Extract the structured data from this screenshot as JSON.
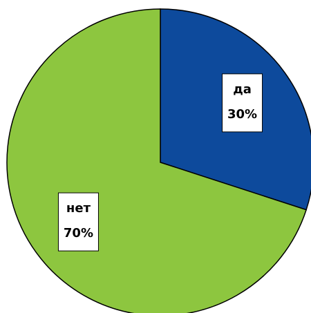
{
  "chart_data": {
    "type": "pie",
    "categories": [
      "да",
      "нет"
    ],
    "values": [
      30,
      70
    ],
    "value_labels": [
      "30%",
      "70%"
    ],
    "colors": [
      "#0d4a9c",
      "#8dc63f"
    ]
  }
}
